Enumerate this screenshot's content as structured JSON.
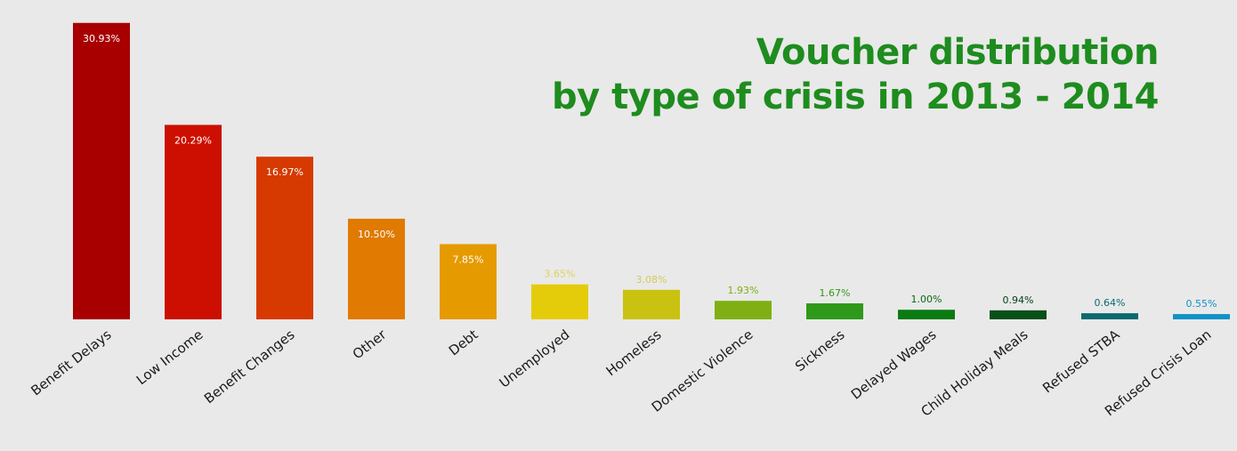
{
  "chart_data": {
    "type": "bar",
    "title_lines": [
      "Voucher distribution",
      "by type of crisis in 2013 - 2014"
    ],
    "categories": [
      "Benefit Delays",
      "Low Income",
      "Benefit Changes",
      "Other",
      "Debt",
      "Unemployed",
      "Homeless",
      "Domestic Violence",
      "Sickness",
      "Delayed Wages",
      "Child Holiday Meals",
      "Refused STBA",
      "Refused Crisis Loan"
    ],
    "values": [
      30.93,
      20.29,
      16.97,
      10.5,
      7.85,
      3.65,
      3.08,
      1.93,
      1.67,
      1.0,
      0.94,
      0.64,
      0.55
    ],
    "data_labels": [
      "30.93%",
      "20.29%",
      "16.97%",
      "10.50%",
      "7.85%",
      "3.65%",
      "3.08%",
      "1.93%",
      "1.67%",
      "1.00%",
      "0.94%",
      "0.64%",
      "0.55%"
    ],
    "bar_colors": [
      "#a80000",
      "#cc0f00",
      "#d63a00",
      "#e07a00",
      "#e59b00",
      "#e5cc0a",
      "#c9c210",
      "#7faf12",
      "#2f9a1a",
      "#0a7a12",
      "#07501a",
      "#0b6a70",
      "#0f92c8"
    ],
    "label_colors": [
      "#ffffff",
      "#ffffff",
      "#ffffff",
      "#ffffff",
      "#ffffff",
      "#e0d25a",
      "#d3cb55",
      "#7faf12",
      "#2f9a1a",
      "#0a6a12",
      "#07401a",
      "#0b6a70",
      "#0f92c8"
    ],
    "ylim": [
      0,
      31
    ],
    "xlabel": "",
    "ylabel": "",
    "grid": false,
    "legend": "none",
    "title_color": "#1e8c1e"
  }
}
